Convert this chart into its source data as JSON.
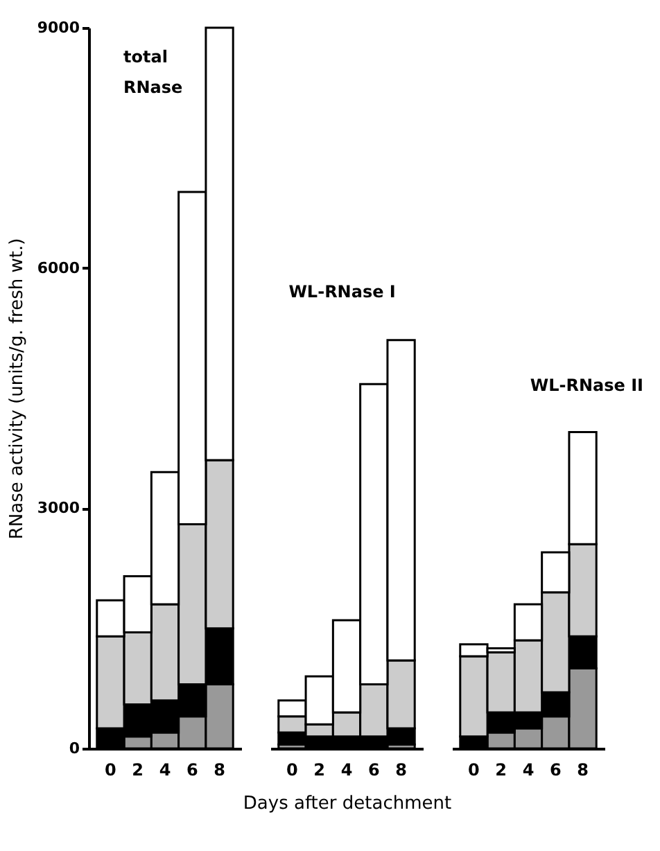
{
  "chart_data": [
    {
      "type": "bar",
      "stacked": true,
      "categories": [
        "0",
        "2",
        "4",
        "6",
        "8"
      ],
      "ylabel": "RNase activity  (units/g. fresh wt.)",
      "ylim": [
        0,
        9000
      ],
      "yticks": [
        0,
        3000,
        6000,
        9000
      ],
      "annotations": [
        "total\nRNase"
      ],
      "series": [
        {
          "color": "#999999",
          "values": [
            0,
            150,
            200,
            400,
            800
          ]
        },
        {
          "color": "#000000",
          "values": [
            250,
            400,
            400,
            400,
            700
          ]
        },
        {
          "color": "#cccccc",
          "values": [
            1150,
            900,
            1200,
            2000,
            2100
          ]
        },
        {
          "color": "#ffffff",
          "values": [
            450,
            700,
            1650,
            4150,
            5400
          ]
        }
      ]
    },
    {
      "type": "bar",
      "stacked": true,
      "categories": [
        "0",
        "2",
        "4",
        "6",
        "8"
      ],
      "xlabel": "Days after detachment",
      "ylim": [
        0,
        9000
      ],
      "tick_labels": "x",
      "annotations": [
        "WL-RNase I"
      ],
      "series": [
        {
          "color": "#999999",
          "values": [
            50,
            0,
            0,
            0,
            50
          ]
        },
        {
          "color": "#000000",
          "values": [
            150,
            150,
            150,
            150,
            200
          ]
        },
        {
          "color": "#cccccc",
          "values": [
            200,
            150,
            300,
            650,
            850
          ]
        },
        {
          "color": "#ffffff",
          "values": [
            200,
            600,
            1150,
            3750,
            4000
          ]
        }
      ]
    },
    {
      "type": "bar",
      "stacked": true,
      "categories": [
        "0",
        "2",
        "4",
        "6",
        "8"
      ],
      "ylim": [
        0,
        9000
      ],
      "tick_labels": "x",
      "annotations": [
        "WL-RNase II"
      ],
      "series": [
        {
          "color": "#999999",
          "values": [
            0,
            200,
            250,
            400,
            1000
          ]
        },
        {
          "color": "#000000",
          "values": [
            150,
            250,
            200,
            300,
            400
          ]
        },
        {
          "color": "#cccccc",
          "values": [
            1000,
            750,
            900,
            1250,
            1150
          ]
        },
        {
          "color": "#ffffff",
          "values": [
            150,
            50,
            450,
            500,
            1400
          ]
        }
      ]
    }
  ]
}
